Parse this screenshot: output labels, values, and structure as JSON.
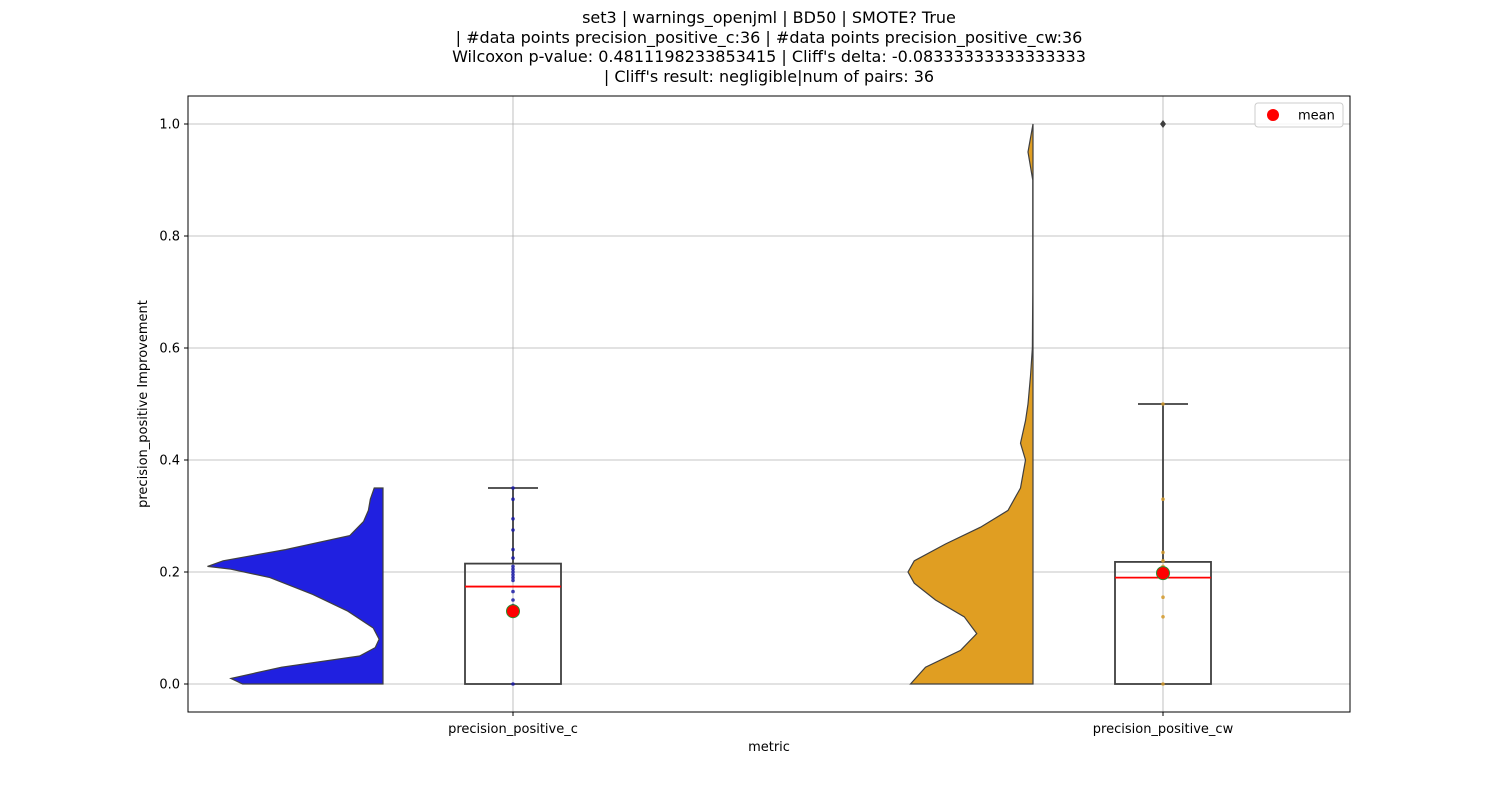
{
  "chart_data": {
    "type": "violin-box",
    "title_lines": [
      "set3 | warnings_openjml | BD50 | SMOTE? True",
      "| #data points precision_positive_c:36 | #data points precision_positive_cw:36",
      "Wilcoxon p-value: 0.4811198233853415 | Cliff's delta: -0.08333333333333333",
      "| Cliff's result: negligible|num of pairs: 36"
    ],
    "xlabel": "metric",
    "ylabel": "precision_positive Improvement",
    "ylim": [
      -0.05,
      1.05
    ],
    "yticks": [
      0.0,
      0.2,
      0.4,
      0.6,
      0.8,
      1.0
    ],
    "ytick_labels": [
      "0.0",
      "0.2",
      "0.4",
      "0.6",
      "0.8",
      "1.0"
    ],
    "categories": [
      "precision_positive_c",
      "precision_positive_cw"
    ],
    "grid": true,
    "legend": {
      "placement": "top-right",
      "entries": [
        {
          "label": "mean",
          "color": "#ff0000"
        }
      ]
    },
    "series": [
      {
        "category": "precision_positive_c",
        "violin_color": "#2020e0",
        "point_color": "#1a1aa6",
        "box": {
          "min": 0.0,
          "q1": 0.0,
          "median": 0.174,
          "q3": 0.215,
          "max": 0.35
        },
        "mean": 0.13,
        "violin_density": [
          [
            0.0,
            0.72
          ],
          [
            0.01,
            0.78
          ],
          [
            0.03,
            0.52
          ],
          [
            0.05,
            0.12
          ],
          [
            0.065,
            0.04
          ],
          [
            0.08,
            0.02
          ],
          [
            0.1,
            0.05
          ],
          [
            0.13,
            0.18
          ],
          [
            0.16,
            0.36
          ],
          [
            0.19,
            0.58
          ],
          [
            0.205,
            0.78
          ],
          [
            0.21,
            0.9
          ],
          [
            0.22,
            0.82
          ],
          [
            0.24,
            0.5
          ],
          [
            0.265,
            0.17
          ],
          [
            0.29,
            0.1
          ],
          [
            0.31,
            0.075
          ],
          [
            0.33,
            0.065
          ],
          [
            0.35,
            0.045
          ]
        ],
        "points": [
          0.0,
          0.13,
          0.14,
          0.15,
          0.165,
          0.185,
          0.19,
          0.195,
          0.2,
          0.205,
          0.21,
          0.225,
          0.24,
          0.275,
          0.295,
          0.33,
          0.35
        ]
      },
      {
        "category": "precision_positive_cw",
        "violin_color": "#e09e22",
        "point_color": "#d49a2a",
        "box": {
          "min": 0.0,
          "q1": 0.0,
          "median": 0.19,
          "q3": 0.218,
          "max": 0.5
        },
        "mean": 0.198,
        "outliers": [
          1.0
        ],
        "violin_density": [
          [
            0.0,
            0.98
          ],
          [
            0.03,
            0.86
          ],
          [
            0.06,
            0.58
          ],
          [
            0.09,
            0.45
          ],
          [
            0.12,
            0.55
          ],
          [
            0.15,
            0.78
          ],
          [
            0.18,
            0.95
          ],
          [
            0.2,
            1.0
          ],
          [
            0.22,
            0.95
          ],
          [
            0.25,
            0.7
          ],
          [
            0.28,
            0.42
          ],
          [
            0.31,
            0.2
          ],
          [
            0.35,
            0.1
          ],
          [
            0.4,
            0.06
          ],
          [
            0.43,
            0.1
          ],
          [
            0.47,
            0.06
          ],
          [
            0.5,
            0.04
          ],
          [
            0.55,
            0.02
          ],
          [
            0.6,
            0.005
          ],
          [
            0.7,
            0.002
          ],
          [
            0.9,
            0.002
          ],
          [
            0.95,
            0.04
          ],
          [
            1.0,
            0.0
          ]
        ],
        "points": [
          0.0,
          0.12,
          0.155,
          0.19,
          0.2,
          0.205,
          0.21,
          0.22,
          0.235,
          0.33,
          0.5
        ]
      }
    ]
  }
}
